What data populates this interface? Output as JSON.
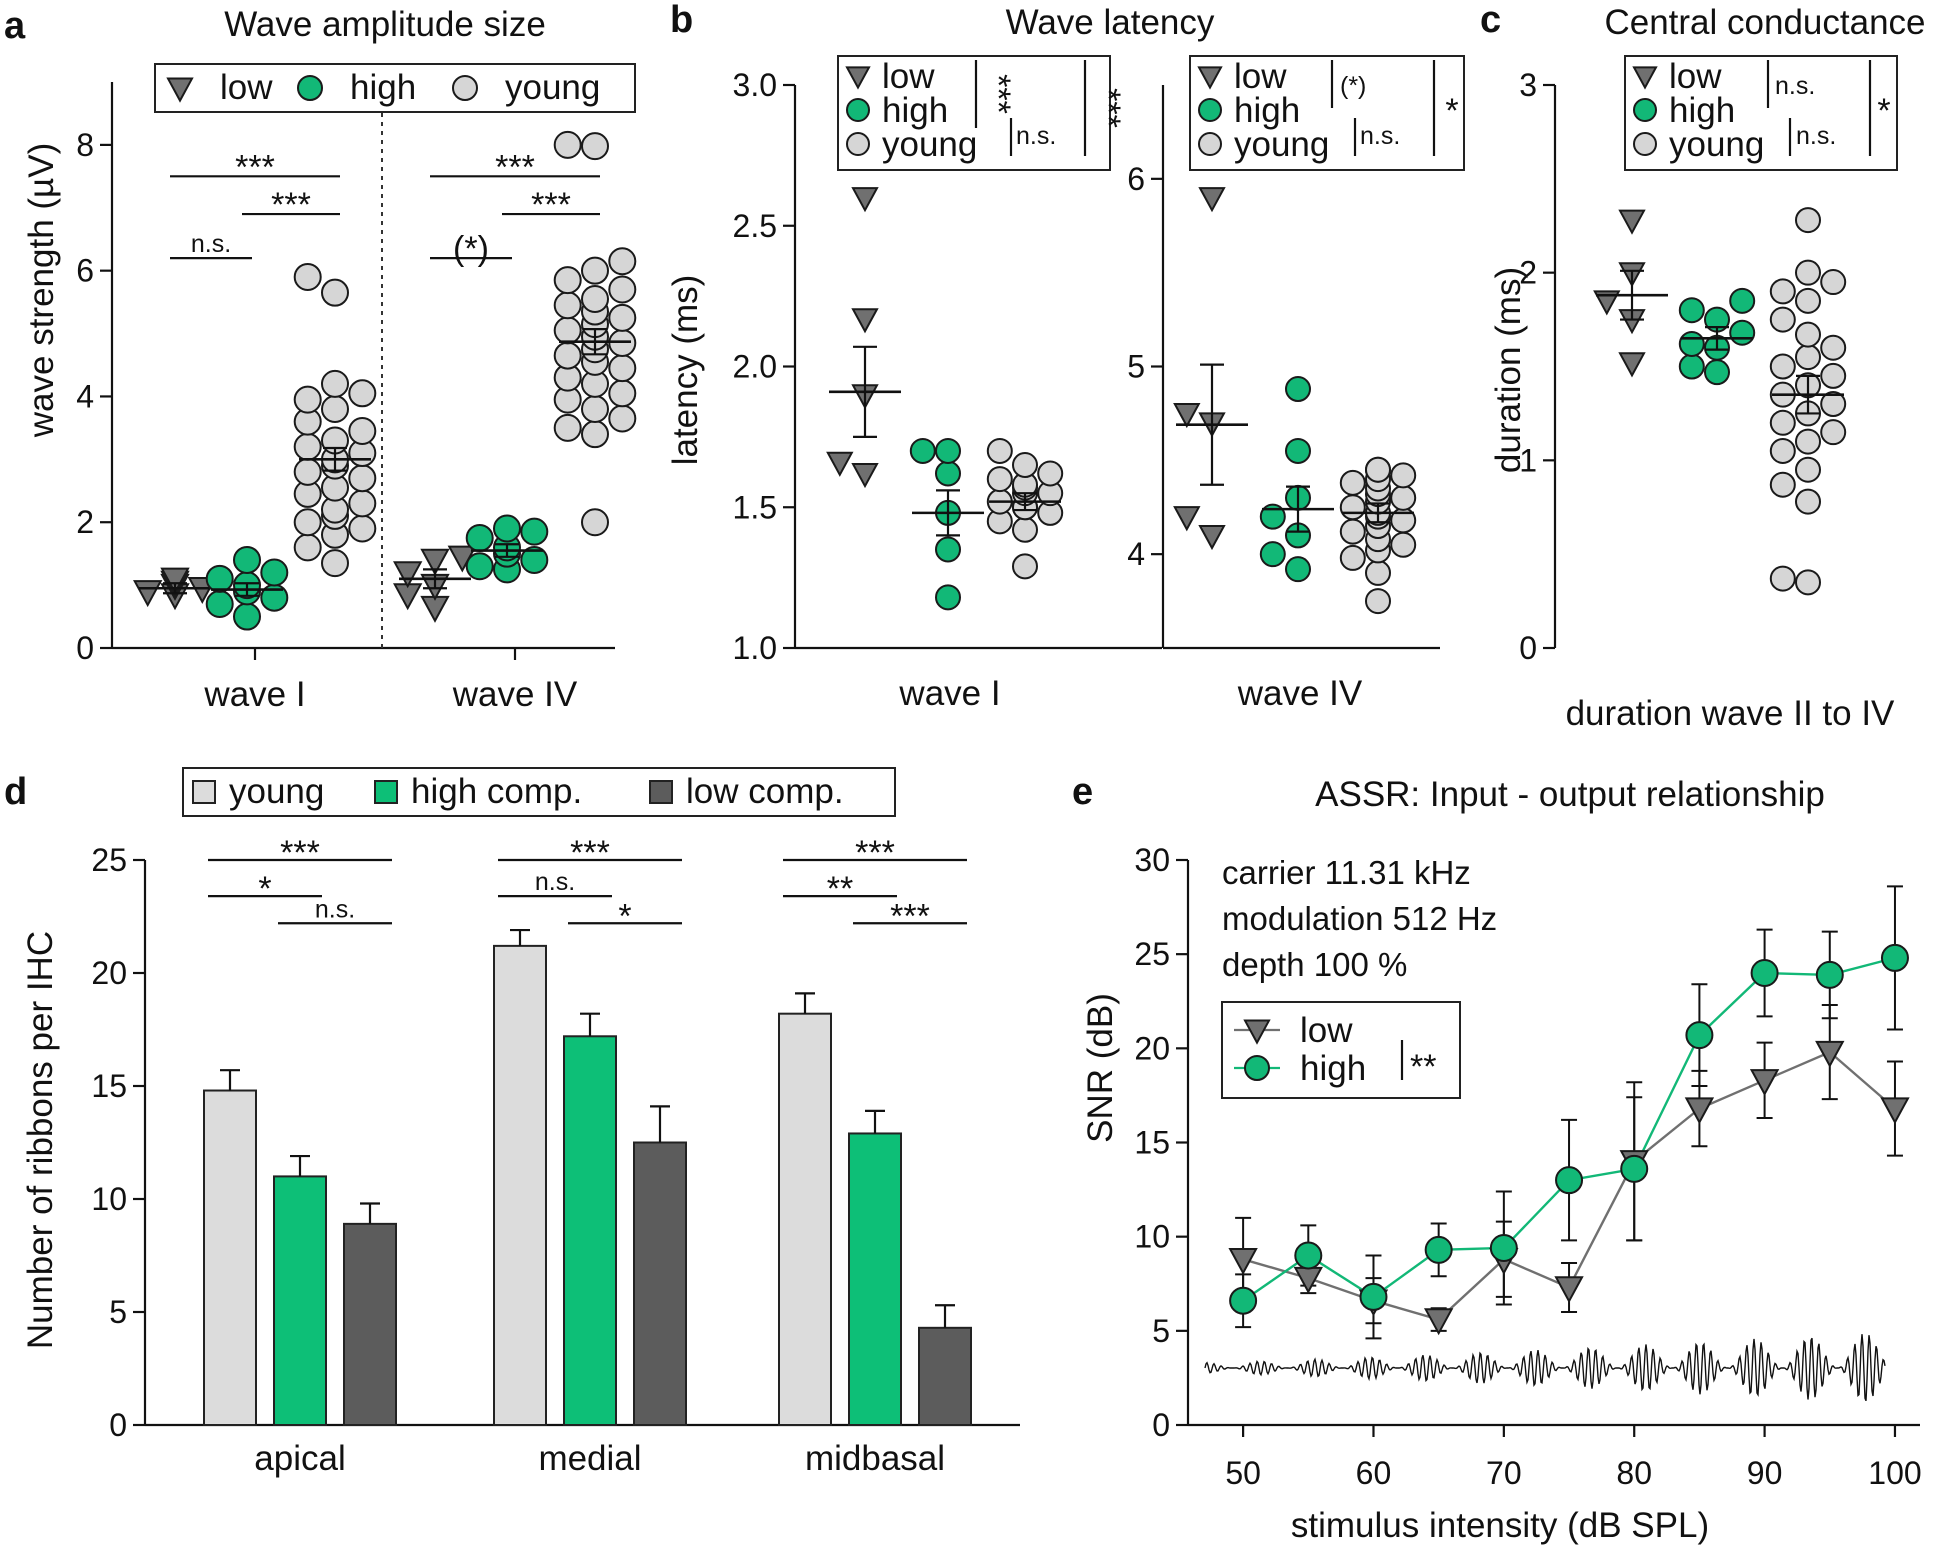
{
  "colors": {
    "low": "#707070",
    "high": "#12b877",
    "young": "#d6d6d6",
    "bar_young": "#dcdcdc",
    "bar_high": "#0dbf77",
    "bar_low": "#5c5c5c",
    "axis": "#111111"
  },
  "panel_labels": [
    "a",
    "b",
    "c",
    "d",
    "e"
  ],
  "chart_data": [
    {
      "id": "a",
      "type": "scatter",
      "title": "Wave amplitude size",
      "ylabel": "wave strength (µV)",
      "ylim": [
        0,
        9
      ],
      "yticks": [
        0,
        2,
        4,
        6,
        8
      ],
      "yticklabels": [
        "0",
        "2",
        "4",
        "6",
        "8"
      ],
      "categories": [
        "wave I",
        "wave IV"
      ],
      "legend": [
        {
          "label": "low",
          "marker": "triangle-down",
          "color": "low"
        },
        {
          "label": "high",
          "marker": "circle",
          "color": "high"
        },
        {
          "label": "young",
          "marker": "circle",
          "color": "young"
        }
      ],
      "groups": [
        {
          "category": "wave I",
          "series": "low",
          "mean": 0.95,
          "sem": 0.08,
          "values": [
            0.85,
            0.9,
            0.95,
            1.0,
            1.05,
            1.1
          ]
        },
        {
          "category": "wave I",
          "series": "high",
          "mean": 0.93,
          "sem": 0.1,
          "values": [
            0.5,
            0.7,
            0.8,
            0.9,
            1.0,
            1.1,
            1.2,
            1.4
          ]
        },
        {
          "category": "wave I",
          "series": "young",
          "mean": 3.0,
          "sem": 0.18,
          "values": [
            1.35,
            1.6,
            1.8,
            1.9,
            2.0,
            2.1,
            2.2,
            2.3,
            2.45,
            2.55,
            2.7,
            2.8,
            2.9,
            3.0,
            3.1,
            3.2,
            3.3,
            3.45,
            3.6,
            3.8,
            3.95,
            4.05,
            4.2,
            5.65,
            5.9
          ]
        },
        {
          "category": "wave IV",
          "series": "low",
          "mean": 1.1,
          "sem": 0.15,
          "values": [
            0.65,
            0.85,
            1.0,
            1.2,
            1.4,
            1.45
          ]
        },
        {
          "category": "wave IV",
          "series": "high",
          "mean": 1.55,
          "sem": 0.1,
          "values": [
            1.25,
            1.3,
            1.4,
            1.5,
            1.6,
            1.75,
            1.85,
            1.9
          ]
        },
        {
          "category": "wave IV",
          "series": "young",
          "mean": 4.87,
          "sem": 0.2,
          "values": [
            2.0,
            3.4,
            3.5,
            3.65,
            3.8,
            3.95,
            4.05,
            4.2,
            4.3,
            4.45,
            4.55,
            4.65,
            4.75,
            4.85,
            4.95,
            5.05,
            5.15,
            5.25,
            5.35,
            5.45,
            5.55,
            5.7,
            5.85,
            6.0,
            6.15,
            7.98,
            8.0
          ]
        }
      ],
      "significance": [
        {
          "category": "wave I",
          "from": "low",
          "to": "young",
          "label": "***",
          "y": 7.5
        },
        {
          "category": "wave I",
          "from": "high",
          "to": "young",
          "label": "***",
          "y": 6.9
        },
        {
          "category": "wave I",
          "from": "low",
          "to": "high",
          "label": "n.s.",
          "y": 6.2
        },
        {
          "category": "wave IV",
          "from": "low",
          "to": "young",
          "label": "***",
          "y": 7.5
        },
        {
          "category": "wave IV",
          "from": "high",
          "to": "young",
          "label": "***",
          "y": 6.9
        },
        {
          "category": "wave IV",
          "from": "low",
          "to": "high",
          "label": "(*)",
          "y": 6.2
        }
      ]
    },
    {
      "id": "b-wave-I",
      "type": "scatter",
      "title": "Wave latency",
      "ylabel": "latency (ms)",
      "xlabel": "wave I",
      "ylim": [
        1.0,
        3.0
      ],
      "yticks": [
        1.0,
        1.5,
        2.0,
        2.5,
        3.0
      ],
      "yticklabels": [
        "1.0",
        "1.5",
        "2.0",
        "2.5",
        "3.0"
      ],
      "legend": [
        {
          "label": "low",
          "marker": "triangle-down",
          "color": "low"
        },
        {
          "label": "high",
          "marker": "circle",
          "color": "high"
        },
        {
          "label": "young",
          "marker": "circle",
          "color": "young"
        }
      ],
      "legend_stats": [
        {
          "from": "low",
          "to": "high",
          "label": "***"
        },
        {
          "from": "high",
          "to": "young",
          "label": "n.s."
        },
        {
          "from": "low",
          "to": "young",
          "label": "***"
        }
      ],
      "groups": [
        {
          "series": "low",
          "mean": 1.91,
          "sem": 0.16,
          "values": [
            1.62,
            1.66,
            1.9,
            2.17,
            2.6
          ]
        },
        {
          "series": "high",
          "mean": 1.48,
          "sem": 0.08,
          "values": [
            1.18,
            1.35,
            1.48,
            1.62,
            1.7,
            1.7
          ]
        },
        {
          "series": "young",
          "mean": 1.52,
          "sem": 0.03,
          "values": [
            1.29,
            1.42,
            1.45,
            1.48,
            1.5,
            1.5,
            1.52,
            1.55,
            1.55,
            1.57,
            1.58,
            1.6,
            1.62,
            1.65,
            1.7
          ]
        }
      ]
    },
    {
      "id": "b-wave-IV",
      "type": "scatter",
      "xlabel": "wave IV",
      "ylim": [
        3.5,
        6.5
      ],
      "yticks": [
        4,
        5,
        6
      ],
      "yticklabels": [
        "4",
        "5",
        "6"
      ],
      "legend": [
        {
          "label": "low",
          "marker": "triangle-down",
          "color": "low"
        },
        {
          "label": "high",
          "marker": "circle",
          "color": "high"
        },
        {
          "label": "young",
          "marker": "circle",
          "color": "young"
        }
      ],
      "legend_stats": [
        {
          "from": "low",
          "to": "high",
          "label": "(*)"
        },
        {
          "from": "high",
          "to": "young",
          "label": "n.s."
        },
        {
          "from": "low",
          "to": "young",
          "label": "*"
        }
      ],
      "groups": [
        {
          "series": "low",
          "mean": 4.69,
          "sem": 0.32,
          "values": [
            4.1,
            4.2,
            4.7,
            4.75,
            5.9
          ]
        },
        {
          "series": "high",
          "mean": 4.24,
          "sem": 0.12,
          "values": [
            3.92,
            4.0,
            4.1,
            4.2,
            4.3,
            4.55,
            4.88
          ]
        },
        {
          "series": "young",
          "mean": 4.22,
          "sem": 0.05,
          "values": [
            3.75,
            3.9,
            3.98,
            4.02,
            4.05,
            4.08,
            4.12,
            4.15,
            4.18,
            4.2,
            4.22,
            4.25,
            4.28,
            4.3,
            4.32,
            4.35,
            4.38,
            4.4,
            4.42,
            4.45,
            4.45
          ]
        }
      ]
    },
    {
      "id": "c",
      "type": "scatter",
      "title": "Central conductance",
      "ylabel": "duration (ms)",
      "xlabel": "duration wave II to IV",
      "ylim": [
        0,
        3
      ],
      "yticks": [
        0,
        1,
        2,
        3
      ],
      "yticklabels": [
        "0",
        "1",
        "2",
        "3"
      ],
      "legend": [
        {
          "label": "low",
          "marker": "triangle-down",
          "color": "low"
        },
        {
          "label": "high",
          "marker": "circle",
          "color": "high"
        },
        {
          "label": "young",
          "marker": "circle",
          "color": "young"
        }
      ],
      "legend_stats": [
        {
          "from": "low",
          "to": "high",
          "label": "n.s."
        },
        {
          "from": "high",
          "to": "young",
          "label": "n.s."
        },
        {
          "from": "low",
          "to": "young",
          "label": "*"
        }
      ],
      "groups": [
        {
          "series": "low",
          "mean": 1.88,
          "sem": 0.13,
          "values": [
            1.52,
            1.75,
            1.85,
            2.0,
            2.28
          ]
        },
        {
          "series": "high",
          "mean": 1.65,
          "sem": 0.06,
          "values": [
            1.47,
            1.5,
            1.6,
            1.62,
            1.68,
            1.75,
            1.8,
            1.85
          ]
        },
        {
          "series": "young",
          "mean": 1.35,
          "sem": 0.1,
          "values": [
            0.35,
            0.37,
            0.78,
            0.87,
            0.95,
            1.05,
            1.1,
            1.15,
            1.2,
            1.25,
            1.3,
            1.35,
            1.4,
            1.45,
            1.5,
            1.55,
            1.6,
            1.67,
            1.75,
            1.85,
            1.9,
            1.95,
            2.0,
            2.28
          ]
        }
      ]
    },
    {
      "id": "d",
      "type": "bar",
      "ylabel": "Number of ribbons per IHC",
      "ylim": [
        0,
        25
      ],
      "yticks": [
        0,
        5,
        10,
        15,
        20,
        25
      ],
      "yticklabels": [
        "0",
        "5",
        "10",
        "15",
        "20",
        "25"
      ],
      "categories": [
        "apical",
        "medial",
        "midbasal"
      ],
      "series": [
        {
          "name": "young",
          "color": "bar_young",
          "values": [
            14.8,
            21.2,
            18.2
          ],
          "errors": [
            0.9,
            0.7,
            0.9
          ]
        },
        {
          "name": "high comp.",
          "color": "bar_high",
          "values": [
            11.0,
            17.2,
            12.9
          ],
          "errors": [
            0.9,
            1.0,
            1.0
          ]
        },
        {
          "name": "low comp.",
          "color": "bar_low",
          "values": [
            8.9,
            12.5,
            4.3
          ],
          "errors": [
            0.9,
            1.6,
            1.0
          ]
        }
      ],
      "significance": [
        {
          "category": "apical",
          "from": 0,
          "to": 2,
          "label": "***",
          "y": 25.0
        },
        {
          "category": "apical",
          "from": 0,
          "to": 1,
          "label": "*",
          "y": 23.4
        },
        {
          "category": "apical",
          "from": 1,
          "to": 2,
          "label": "n.s.",
          "y": 22.2
        },
        {
          "category": "medial",
          "from": 0,
          "to": 2,
          "label": "***",
          "y": 25.0
        },
        {
          "category": "medial",
          "from": 0,
          "to": 1,
          "label": "n.s.",
          "y": 23.4
        },
        {
          "category": "medial",
          "from": 1,
          "to": 2,
          "label": "*",
          "y": 22.2
        },
        {
          "category": "midbasal",
          "from": 0,
          "to": 2,
          "label": "***",
          "y": 25.0
        },
        {
          "category": "midbasal",
          "from": 0,
          "to": 1,
          "label": "**",
          "y": 23.4
        },
        {
          "category": "midbasal",
          "from": 1,
          "to": 2,
          "label": "***",
          "y": 22.2
        }
      ]
    },
    {
      "id": "e",
      "type": "line",
      "title": "ASSR: Input - output relationship",
      "xlabel": "stimulus intensity (dB SPL)",
      "ylabel": "SNR (dB)",
      "xlim": [
        47,
        101
      ],
      "ylim": [
        0,
        30
      ],
      "xticks": [
        50,
        60,
        70,
        80,
        90,
        100
      ],
      "xticklabels": [
        "50",
        "60",
        "70",
        "80",
        "90",
        "100"
      ],
      "yticks": [
        0,
        5,
        10,
        15,
        20,
        25,
        30
      ],
      "yticklabels": [
        "0",
        "5",
        "10",
        "15",
        "20",
        "25",
        "30"
      ],
      "x": [
        50,
        55,
        60,
        65,
        70,
        75,
        80,
        85,
        90,
        95,
        100
      ],
      "annotations": [
        "carrier 11.31 kHz",
        "modulation 512 Hz",
        "depth 100 %"
      ],
      "legend_stat": "**",
      "series": [
        {
          "name": "low",
          "marker": "triangle-down",
          "color": "low",
          "values": [
            8.8,
            7.8,
            6.6,
            5.6,
            8.8,
            7.3,
            14.0,
            16.8,
            18.3,
            19.8,
            16.8
          ],
          "errors": [
            2.2,
            0.8,
            1.2,
            0.6,
            2.0,
            1.3,
            4.2,
            2.0,
            2.0,
            2.5,
            2.5
          ]
        },
        {
          "name": "high",
          "marker": "circle",
          "color": "high",
          "values": [
            6.6,
            9.0,
            6.8,
            9.3,
            9.4,
            13.0,
            13.6,
            20.7,
            24.0,
            23.9,
            24.8
          ],
          "errors": [
            1.4,
            1.6,
            2.2,
            1.4,
            3.0,
            3.2,
            3.8,
            2.7,
            2.3,
            2.3,
            3.8
          ]
        }
      ]
    }
  ]
}
